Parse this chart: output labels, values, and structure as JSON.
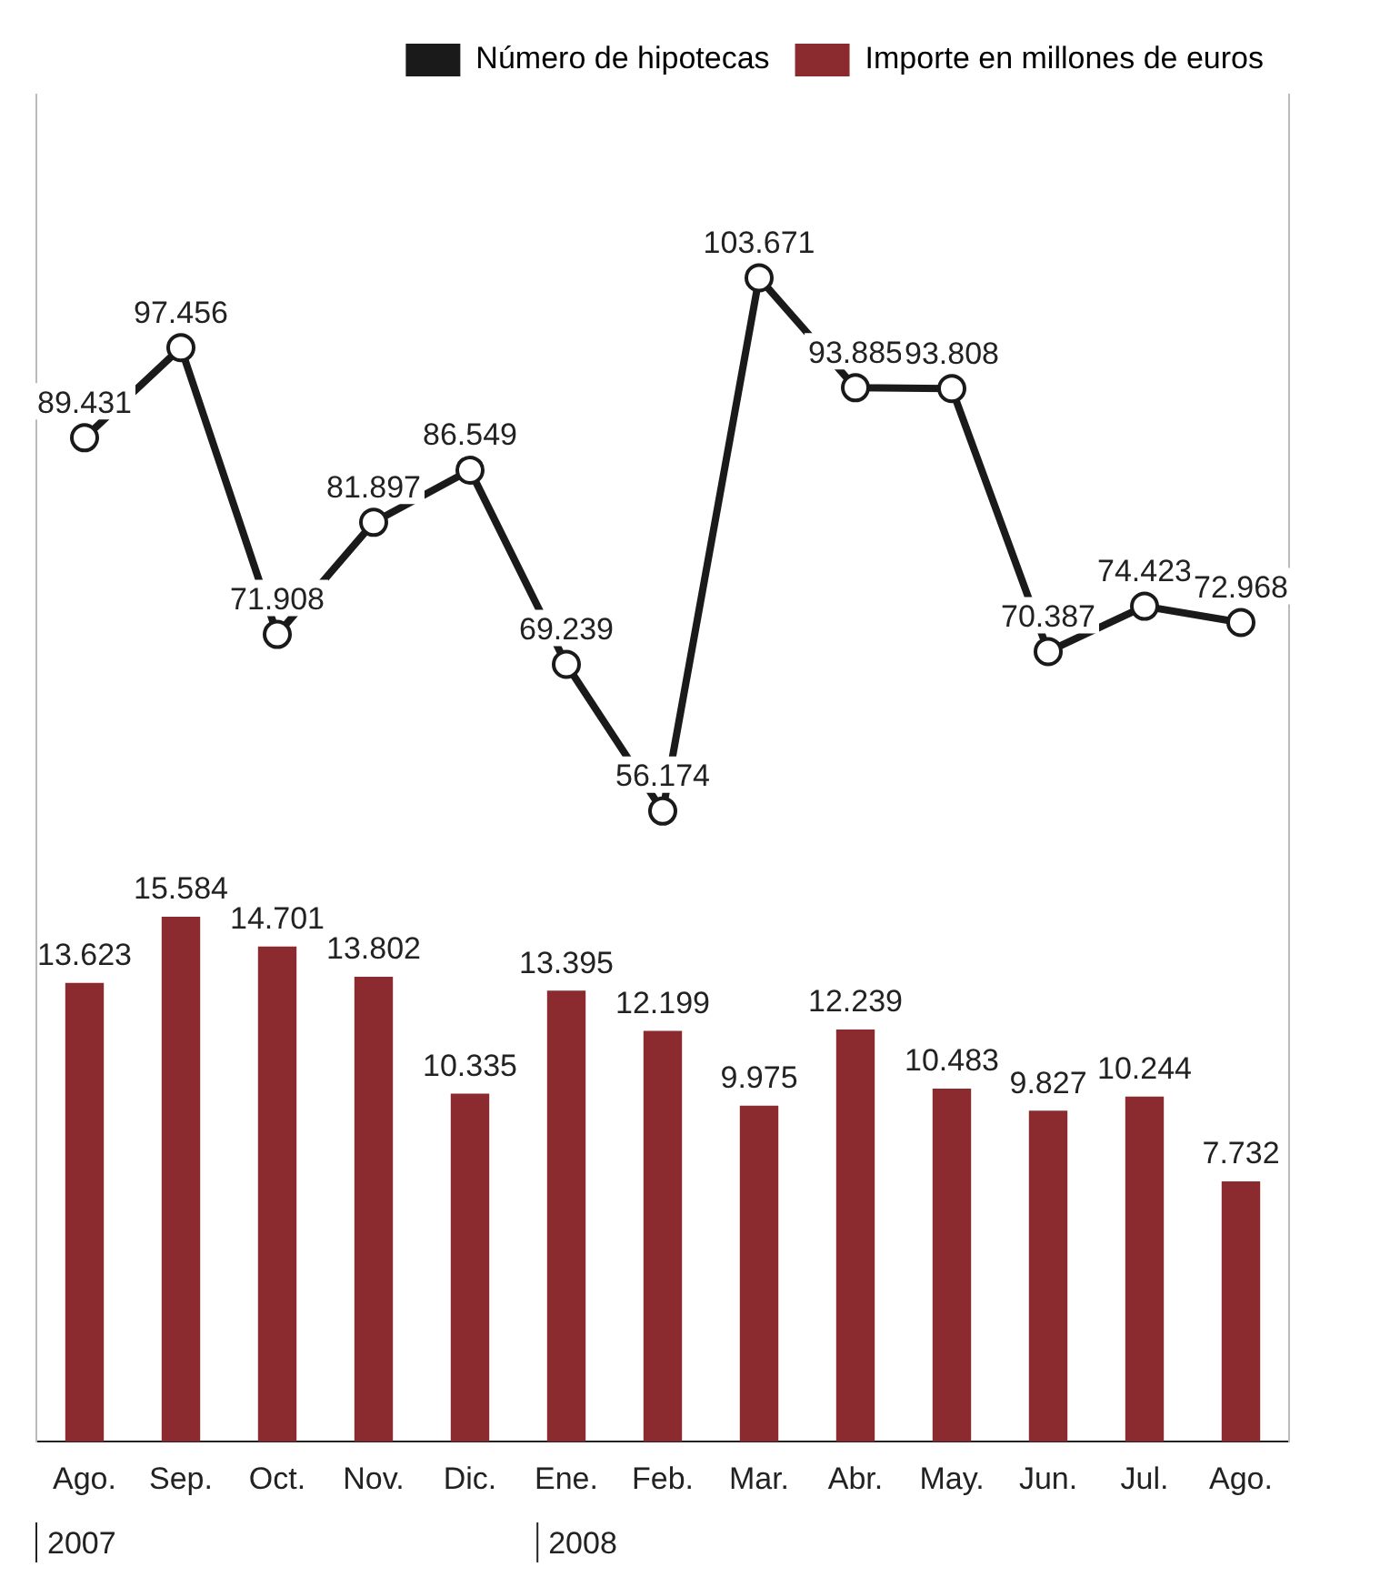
{
  "chart_data": {
    "type": "bar",
    "categories": [
      "Ago.",
      "Sep.",
      "Oct.",
      "Nov.",
      "Dic.",
      "Ene.",
      "Feb.",
      "Mar.",
      "Abr.",
      "May.",
      "Jun.",
      "Jul.",
      "Ago."
    ],
    "series": [
      {
        "name": "Número de hipotecas",
        "type": "line",
        "axis": "y2",
        "color": "#1a1a1a",
        "values": [
          89431,
          97456,
          71908,
          81897,
          86549,
          69239,
          56174,
          103671,
          93885,
          93808,
          70387,
          74423,
          72968
        ],
        "value_labels": [
          "89.431",
          "97.456",
          "71.908",
          "81.897",
          "86.549",
          "69.239",
          "56.174",
          "103.671",
          "93.885",
          "93.808",
          "70.387",
          "74.423",
          "72.968"
        ]
      },
      {
        "name": "Importe en millones de euros",
        "color": "#8c2b2f",
        "values": [
          13623,
          15584,
          14701,
          13802,
          10335,
          13395,
          12199,
          9975,
          12239,
          10483,
          9827,
          10244,
          7732
        ],
        "value_labels": [
          "13.623",
          "15.584",
          "14.701",
          "13.802",
          "10.335",
          "13.395",
          "12.199",
          "9.975",
          "12.239",
          "10.483",
          "9.827",
          "10.244",
          "7.732"
        ]
      }
    ],
    "annotations": [
      "2007",
      "2008"
    ],
    "ylim": [
      0,
      40000
    ],
    "y2lim": [
      0,
      120000
    ],
    "legend": "top right",
    "marker": "circle",
    "grid": false
  }
}
